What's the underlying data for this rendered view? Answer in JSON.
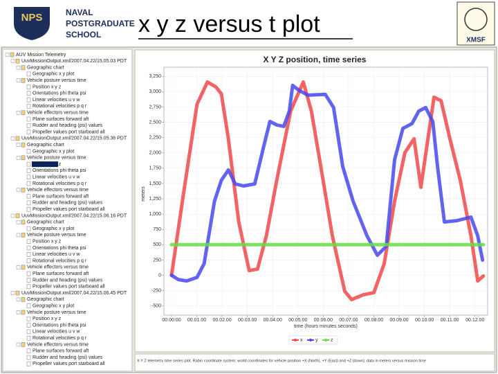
{
  "header": {
    "title": "x y z versus t plot",
    "logo_left": {
      "emblem": "NPS",
      "lines": [
        "NAVAL",
        "POSTGRADUATE",
        "SCHOOL"
      ]
    },
    "logo_right": "XMSF"
  },
  "tree": {
    "root": "AUV Mission Telemetry",
    "groups": [
      {
        "label": "UuvMissionOutput.xml/2007.04.22/15.05.03 PDT",
        "sections": [
          {
            "label": "Geographic chart",
            "items": [
              "Geographic x y plot"
            ]
          },
          {
            "label": "Vehicle posture versus time",
            "items": [
              "Position x y z",
              "Orientations phi theta psi",
              "Linear velocities u v w",
              "Rotational velocities p q r"
            ]
          },
          {
            "label": "Vehicle effectors versus time",
            "items": [
              "Plane surfaces forward aft",
              "Rudder and heading (psi) values",
              "Propeller values port starboard all"
            ]
          }
        ]
      },
      {
        "label": "UuvMissionOutput.xml/2007.04.22/15.05.36 PDT",
        "sections": [
          {
            "label": "Geographic chart",
            "items": [
              "Geographic x y plot"
            ]
          },
          {
            "label": "Vehicle posture versus time",
            "items": [
              "Position x y z",
              "Orientations phi theta psi",
              "Linear velocities u v w",
              "Rotational velocities p q r"
            ]
          },
          {
            "label": "Vehicle effectors versus time",
            "items": [
              "Plane surfaces forward aft",
              "Rudder and heading (psi) values",
              "Propeller values port starboard all"
            ]
          }
        ]
      },
      {
        "label": "UuvMissionOutput.xml/2007.04.22/15.06.16 PDT",
        "sections": [
          {
            "label": "Geographic chart",
            "items": [
              "Geographic x y plot"
            ]
          },
          {
            "label": "Vehicle posture versus time",
            "items": [
              "Position x y z",
              "Orientations phi theta psi",
              "Linear velocities u v w",
              "Rotational velocities p q r"
            ]
          },
          {
            "label": "Vehicle effectors versus time",
            "items": [
              "Plane surfaces forward aft",
              "Rudder and heading (psi) values",
              "Propeller values port starboard all"
            ]
          }
        ]
      },
      {
        "label": "UuvMissionOutput.xml/2007.04.22/15.06.45 PDT",
        "sections": [
          {
            "label": "Geographic chart",
            "items": [
              "Geographic x y plot"
            ]
          },
          {
            "label": "Vehicle posture versus time",
            "items": [
              "Position x y z",
              "Orientations phi theta psi",
              "Linear velocities u v w",
              "Rotational velocities p q r"
            ]
          },
          {
            "label": "Vehicle effectors versus time",
            "items": [
              "Plane surfaces forward aft",
              "Rudder and heading (psi) values",
              "Propeller values port starboard all"
            ]
          }
        ]
      }
    ]
  },
  "caption": "X Y Z telemetry time series plot. Rabin coordinate system: world coordinates for vehicle position +X (North), +Y (East) and +Z (down); data in meters versus mission time",
  "chart_data": {
    "type": "line",
    "title": "X Y Z position, time series",
    "x_label": "time (hours minutes seconds)",
    "y_label": "meters",
    "xlim": [
      -0.3,
      12.5
    ],
    "xticks": [
      {
        "value": 0,
        "label": "00.00.00"
      },
      {
        "value": 1,
        "label": "00.01.00"
      },
      {
        "value": 2,
        "label": "00.02.00"
      },
      {
        "value": 3,
        "label": "00.03.00"
      },
      {
        "value": 4,
        "label": "00.04.00"
      },
      {
        "value": 5,
        "label": "00.05.00"
      },
      {
        "value": 6,
        "label": "00.06.00"
      },
      {
        "value": 7,
        "label": "00.07.00"
      },
      {
        "value": 8,
        "label": "00.08.00"
      },
      {
        "value": 9,
        "label": "00.09.00"
      },
      {
        "value": 10,
        "label": "00.10.00"
      },
      {
        "value": 11,
        "label": "00.11.00"
      },
      {
        "value": 12,
        "label": "00.12.00"
      }
    ],
    "ylim": [
      -650,
      3400
    ],
    "yticks": [
      {
        "value": 3250,
        "label": "3,250"
      },
      {
        "value": 3000,
        "label": "3,000"
      },
      {
        "value": 2750,
        "label": "2,750"
      },
      {
        "value": 2500,
        "label": "2,500"
      },
      {
        "value": 2250,
        "label": "2,250"
      },
      {
        "value": 2000,
        "label": "2,000"
      },
      {
        "value": 1750,
        "label": "1,750"
      },
      {
        "value": 1500,
        "label": "1,500"
      },
      {
        "value": 1250,
        "label": "1,250"
      },
      {
        "value": 1000,
        "label": "1,000"
      },
      750,
      500,
      250,
      0,
      -250,
      -500
    ],
    "grid": true,
    "series": [
      {
        "name": "x",
        "color": "#f04848",
        "x": [
          0,
          0.47,
          1.01,
          1.42,
          1.75,
          1.97,
          2.25,
          2.66,
          3.07,
          3.4,
          3.75,
          4.16,
          4.71,
          5.21,
          5.53,
          5.95,
          6.36,
          6.85,
          7.12,
          7.59,
          8.0,
          8.41,
          8.82,
          9.23,
          9.59,
          9.86,
          10.14,
          10.38,
          10.66,
          11.01,
          11.42,
          11.84,
          12.11,
          12.33
        ],
        "values": [
          0,
          1325,
          2796,
          3158,
          3079,
          2966,
          2230,
          872,
          79,
          102,
          645,
          1551,
          2683,
          3158,
          2683,
          1664,
          645,
          -260,
          -396,
          -317,
          -283,
          192,
          1211,
          2004,
          2230,
          1438,
          2230,
          2909,
          2853,
          2230,
          1551,
          645,
          -91,
          -11
        ]
      },
      {
        "name": "y",
        "color": "#4848f0",
        "x": [
          0,
          0.27,
          0.6,
          1.01,
          1.29,
          1.7,
          1.97,
          2.25,
          2.52,
          2.85,
          3.29,
          3.62,
          3.89,
          4.16,
          4.44,
          4.66,
          4.79,
          5.04,
          5.4,
          6.08,
          6.41,
          6.77,
          7.18,
          7.73,
          8.14,
          8.49,
          8.82,
          9.15,
          9.51,
          9.78,
          10.05,
          10.33,
          10.52,
          10.79,
          11.29,
          11.84,
          12.11,
          12.3
        ],
        "values": [
          0,
          -68,
          -91,
          -34,
          192,
          1211,
          1551,
          1721,
          1494,
          1460,
          1494,
          2060,
          2513,
          2456,
          2434,
          2683,
          3102,
          3022,
          2943,
          2955,
          2740,
          1777,
          1211,
          645,
          328,
          475,
          1890,
          2400,
          2479,
          2683,
          2740,
          2513,
          1777,
          872,
          894,
          951,
          645,
          249
        ]
      },
      {
        "name": "z",
        "color": "#66dd44",
        "x": [
          0,
          12.33
        ],
        "values": [
          500,
          500
        ]
      }
    ]
  }
}
